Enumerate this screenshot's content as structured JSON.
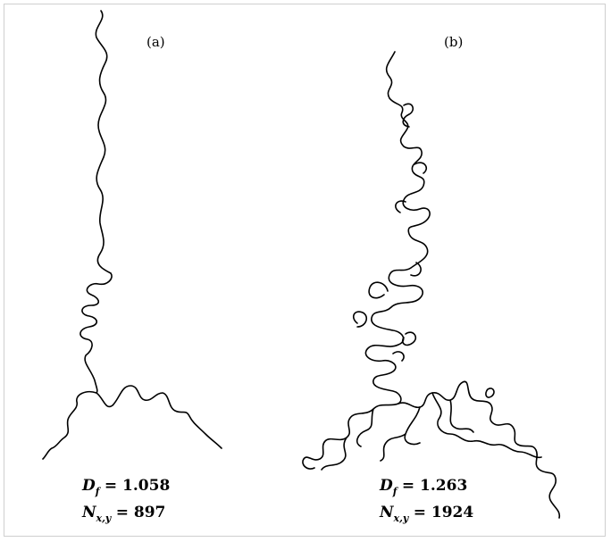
{
  "panels": [
    {
      "label": "(a)",
      "df_symbol": "D",
      "df_subscript": "f",
      "df_value": "= 1.058",
      "n_symbol": "N",
      "n_subscript": "x,y",
      "n_value": "= 897"
    },
    {
      "label": "(b)",
      "df_symbol": "D",
      "df_subscript": "f",
      "df_value": "= 1.263",
      "n_symbol": "N",
      "n_subscript": "x,y",
      "n_value": "= 1924"
    }
  ],
  "colors": {
    "stroke": "#000000",
    "frame": "#cfcfcf",
    "background": "#ffffff"
  }
}
